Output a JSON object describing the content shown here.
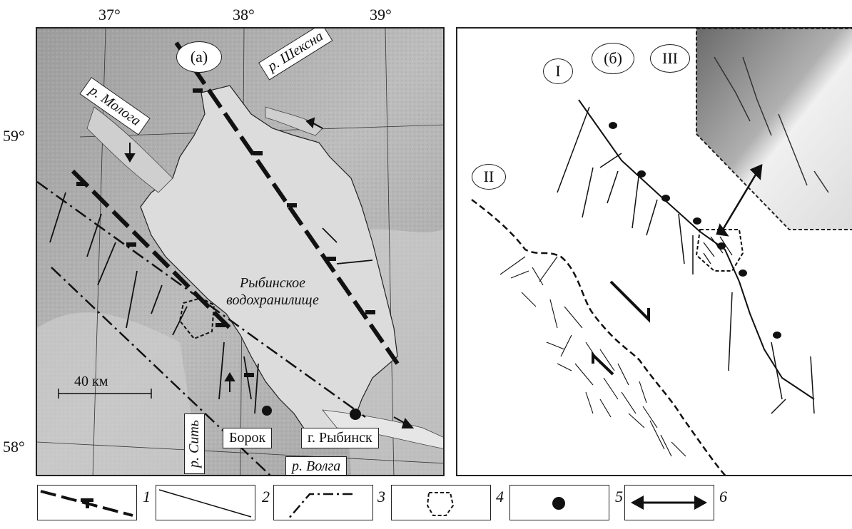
{
  "coordinates": {
    "lon": [
      "37°",
      "38°",
      "39°"
    ],
    "lat": [
      "59°",
      "58°"
    ]
  },
  "panel_a": {
    "label": "(а)",
    "rivers": {
      "sheksna": "р. Шексна",
      "mologa": "р. Молога",
      "sit": "р. Сить",
      "volga": "р. Волга"
    },
    "lake": {
      "line1": "Рыбинское",
      "line2": "водохранилище"
    },
    "towns": {
      "borok": "Борок",
      "rybinsk": "г. Рыбинск"
    },
    "scale": "40 км"
  },
  "panel_b": {
    "label": "(б)",
    "zones": [
      "I",
      "II",
      "III"
    ]
  },
  "legend": {
    "items": [
      "1",
      "2",
      "3",
      "4",
      "5",
      "6"
    ],
    "symbols": [
      "thrust-fault-icon",
      "lineament-icon",
      "zone-boundary-icon",
      "study-area-icon",
      "settlement-icon",
      "double-arrow-icon"
    ]
  },
  "colors": {
    "water": "#dcdcdc",
    "relief": "#a8a8a8",
    "line": "#1a1a1a"
  }
}
